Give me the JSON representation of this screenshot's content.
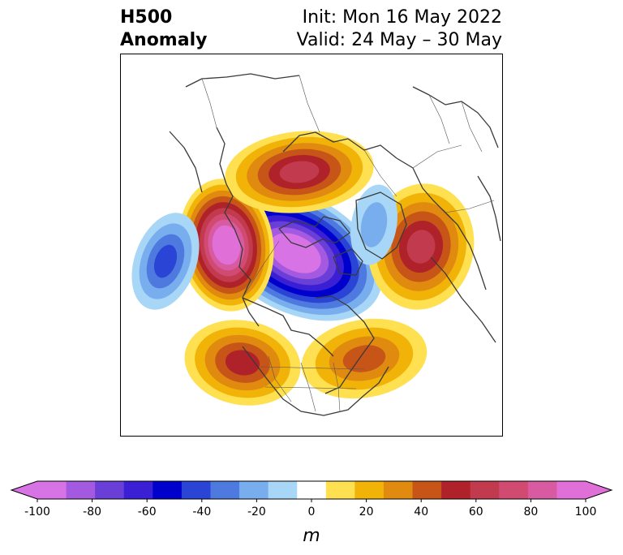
{
  "title": {
    "line1_left": "H500",
    "line2_left": "Anomaly",
    "line1_right": "Init: Mon 16 May 2022",
    "line2_right": "Valid: 24 May – 30 May"
  },
  "colorbar": {
    "label": "m",
    "ticks": [
      "-100",
      "-80",
      "-60",
      "-40",
      "-20",
      "0",
      "20",
      "40",
      "60",
      "80",
      "100"
    ],
    "tick_values": [
      -100,
      -80,
      -60,
      -40,
      -20,
      0,
      20,
      40,
      60,
      80,
      100
    ],
    "levels": [
      -100,
      -90,
      -80,
      -70,
      -60,
      -50,
      -40,
      -30,
      -20,
      -10,
      10,
      20,
      30,
      40,
      50,
      60,
      70,
      80,
      90,
      100
    ],
    "colors": [
      "#d873e6",
      "#a45ae0",
      "#6a3fd8",
      "#3a1fd4",
      "#0000cc",
      "#2a44d6",
      "#4e7ae0",
      "#78aeee",
      "#a8d6f6",
      "#ffffff",
      "#fee050",
      "#f2b308",
      "#e08a10",
      "#c85518",
      "#b0222a",
      "#c23a4e",
      "#d04a72",
      "#d85aa0",
      "#e070d8"
    ],
    "extend": "both",
    "extend_min_color": "#d873e6",
    "extend_max_color": "#e070d8"
  },
  "map": {
    "projection": "north polar stereographic",
    "field": "500 hPa geopotential height anomaly",
    "units": "m",
    "features": [
      {
        "name": "central-arctic-low",
        "sign": "negative",
        "peak_anomaly": -100
      },
      {
        "name": "alaska-ridge",
        "sign": "positive",
        "peak_anomaly": 100
      },
      {
        "name": "western-siberia-ridge",
        "sign": "positive",
        "peak_anomaly": 60
      },
      {
        "name": "eastern-siberia-ridge",
        "sign": "positive",
        "peak_anomaly": 60
      },
      {
        "name": "western-us-ridge",
        "sign": "positive",
        "peak_anomaly": 50
      },
      {
        "name": "eastern-canada-ridge",
        "sign": "positive",
        "peak_anomaly": 40
      },
      {
        "name": "north-pacific-trough",
        "sign": "negative",
        "peak_anomaly": -40
      },
      {
        "name": "north-atlantic-low",
        "sign": "negative",
        "peak_anomaly": -20
      }
    ]
  }
}
